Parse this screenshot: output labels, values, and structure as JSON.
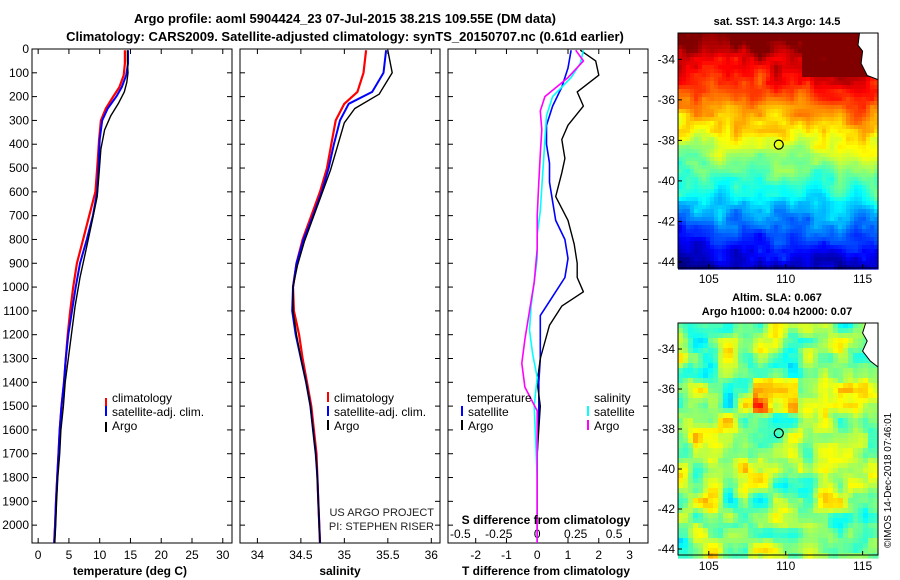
{
  "header": {
    "line1": "Argo profile: aoml 5904424_23 07-Jul-2015 38.21S 109.55E (DM data)",
    "line2": "Climatology: CARS2009. Satellite-adjusted climatology: synTS_20150707.nc (0.61d earlier)"
  },
  "colors": {
    "climatology": "#ff0000",
    "satellite": "#0000ff",
    "argo": "#000000",
    "sat_salinity": "#00ffff",
    "clim_salinity": "#ff00ff"
  },
  "panels": {
    "temperature": {
      "xlabel": "temperature (deg C)",
      "legend": [
        "climatology",
        "satellite-adj. clim.",
        "Argo"
      ]
    },
    "salinity": {
      "xlabel": "salinity",
      "legend": [
        "climatology",
        "satellite-adj. clim.",
        "Argo"
      ],
      "credit1": "US ARGO PROJECT",
      "credit2": "PI: STEPHEN RISER"
    },
    "difference": {
      "xlabel": "T difference from climatology",
      "s_axis_label": "S difference from climatology",
      "legend_temp_head": "temperature",
      "legend_sal_head": "salinity",
      "legend_temp": [
        "satellite",
        "Argo"
      ],
      "legend_sal": [
        "satellite",
        "Argo"
      ]
    }
  },
  "maps": {
    "sst_title": "sat. SST: 14.3 Argo: 14.5",
    "sla_title1": "Altim. SLA: 0.067",
    "sla_title2": "Argo h1000: 0.04 h2000: 0.07",
    "lon_ticks": [
      "105",
      "110",
      "115"
    ],
    "lat_ticks": [
      "-34",
      "-36",
      "-38",
      "-40",
      "-42",
      "-44"
    ],
    "float_position": {
      "lon": 109.55,
      "lat": -38.21
    }
  },
  "stamp": "©IMOS 14-Dec-2018 07:46:01",
  "chart_data": [
    {
      "type": "line",
      "name": "temperature profile",
      "xlabel": "temperature (deg C)",
      "ylabel": "",
      "xlim": [
        -1,
        31.5
      ],
      "ylim": [
        2075,
        0
      ],
      "xticks": [
        0,
        5,
        10,
        15,
        20,
        25,
        30
      ],
      "yticks": [
        0,
        100,
        200,
        300,
        400,
        500,
        600,
        700,
        800,
        900,
        1000,
        1100,
        1200,
        1300,
        1400,
        1500,
        1600,
        1700,
        1800,
        1900,
        2000
      ],
      "series": [
        {
          "name": "climatology",
          "color": "#ff0000",
          "width": 2.2,
          "x": [
            14.1,
            14.1,
            13.9,
            13.2,
            12.2,
            11.0,
            10.2,
            9.9,
            9.6,
            9.3,
            8.3,
            7.3,
            6.3,
            5.7,
            5.2,
            4.8,
            4.5,
            4.2,
            3.8,
            3.5,
            3.3,
            3.1,
            2.9,
            2.75,
            2.6
          ],
          "y": [
            5,
            60,
            110,
            160,
            200,
            250,
            300,
            380,
            500,
            600,
            700,
            800,
            900,
            1000,
            1100,
            1200,
            1300,
            1400,
            1500,
            1600,
            1700,
            1800,
            1900,
            2000,
            2075
          ]
        },
        {
          "name": "satellite-adj. clim.",
          "color": "#0000ff",
          "width": 2.0,
          "x": [
            14.6,
            14.6,
            14.3,
            13.6,
            12.7,
            11.3,
            10.4,
            10.0,
            9.8,
            9.6,
            8.9,
            7.9,
            6.8,
            6.1,
            5.5,
            4.9,
            4.5,
            4.2,
            3.8,
            3.5,
            3.3,
            3.1,
            2.9,
            2.75,
            2.6
          ],
          "y": [
            5,
            60,
            110,
            160,
            200,
            250,
            300,
            380,
            500,
            600,
            700,
            800,
            900,
            1000,
            1100,
            1200,
            1300,
            1400,
            1500,
            1600,
            1700,
            1800,
            1900,
            2000,
            2075
          ]
        },
        {
          "name": "Argo",
          "color": "#000000",
          "width": 1.4,
          "x": [
            14.5,
            14.5,
            14.6,
            14.4,
            14.0,
            13.0,
            11.8,
            10.8,
            10.2,
            9.9,
            9.6,
            8.8,
            7.8,
            6.8,
            6.0,
            5.4,
            4.9,
            4.4,
            4.1,
            3.7,
            3.5,
            3.2,
            3.0,
            2.85,
            2.7
          ],
          "y": [
            5,
            50,
            100,
            140,
            180,
            230,
            280,
            340,
            420,
            520,
            620,
            720,
            840,
            960,
            1080,
            1200,
            1300,
            1400,
            1500,
            1600,
            1700,
            1800,
            1900,
            2000,
            2075
          ]
        }
      ]
    },
    {
      "type": "line",
      "name": "salinity profile",
      "xlabel": "salinity",
      "ylabel": "",
      "xlim": [
        33.8,
        36.1
      ],
      "ylim": [
        2075,
        0
      ],
      "xticks": [
        34,
        34.5,
        35,
        35.5,
        36
      ],
      "xtick_labels": [
        "34",
        "34.5",
        "35",
        "35.5",
        "36"
      ],
      "series": [
        {
          "name": "climatology",
          "color": "#ff0000",
          "width": 2.2,
          "x": [
            35.25,
            35.22,
            35.15,
            35.0,
            34.9,
            34.85,
            34.8,
            34.72,
            34.62,
            34.52,
            34.45,
            34.41,
            34.42,
            34.48,
            34.52,
            34.57,
            34.62,
            34.65,
            34.68,
            34.69,
            34.7,
            34.72
          ],
          "y": [
            5,
            100,
            180,
            230,
            300,
            400,
            500,
            600,
            700,
            800,
            900,
            1000,
            1100,
            1200,
            1300,
            1400,
            1500,
            1600,
            1700,
            1800,
            1900,
            2075
          ]
        },
        {
          "name": "satellite-adj. clim.",
          "color": "#0000ff",
          "width": 2.0,
          "x": [
            35.48,
            35.45,
            35.32,
            35.05,
            34.95,
            34.88,
            34.82,
            34.74,
            34.64,
            34.53,
            34.45,
            34.41,
            34.4,
            34.44,
            34.5,
            34.56,
            34.61,
            34.64,
            34.67,
            34.69,
            34.7,
            34.72
          ],
          "y": [
            5,
            100,
            180,
            230,
            300,
            400,
            500,
            600,
            700,
            800,
            900,
            1000,
            1100,
            1200,
            1300,
            1400,
            1500,
            1600,
            1700,
            1800,
            1900,
            2075
          ]
        },
        {
          "name": "Argo",
          "color": "#000000",
          "width": 1.4,
          "x": [
            35.5,
            35.55,
            35.4,
            35.12,
            35.0,
            34.92,
            34.84,
            34.74,
            34.64,
            34.54,
            34.46,
            34.41,
            34.41,
            34.45,
            34.5,
            34.56,
            34.61,
            34.64,
            34.67,
            34.69,
            34.7,
            34.72
          ],
          "y": [
            5,
            100,
            190,
            250,
            310,
            410,
            510,
            610,
            710,
            810,
            910,
            1000,
            1100,
            1200,
            1300,
            1400,
            1500,
            1600,
            1700,
            1800,
            1900,
            2075
          ]
        }
      ]
    },
    {
      "type": "line",
      "name": "difference from climatology",
      "xlabel": "T difference from climatology",
      "ylabel": "",
      "xlim": [
        -2.9,
        3.6
      ],
      "ylim": [
        2075,
        0
      ],
      "xticks": [
        -2,
        -1,
        0,
        1,
        2,
        3
      ],
      "secondary_axis": {
        "label": "S difference from climatology",
        "ticks": [
          "-0.5",
          "-0.25",
          "0",
          "0.25",
          "0.5"
        ],
        "ticks_value": [
          -0.5,
          -0.25,
          0,
          0.25,
          0.5
        ]
      },
      "series": [
        {
          "name": "temperature satellite",
          "color": "#0000ff",
          "width": 1.6,
          "x": [
            1.1,
            1.0,
            0.8,
            0.5,
            0.3,
            0.3,
            0.4,
            0.4,
            0.5,
            0.6,
            0.9,
            1.0,
            0.9,
            0.5,
            0.1,
            0.1,
            0.1,
            0.05,
            0.05,
            0.0,
            0.0,
            0.0
          ],
          "y": [
            5,
            80,
            160,
            240,
            320,
            400,
            480,
            560,
            640,
            720,
            800,
            880,
            960,
            1040,
            1120,
            1200,
            1300,
            1400,
            1500,
            1700,
            1900,
            2075
          ]
        },
        {
          "name": "temperature Argo",
          "color": "#000000",
          "width": 1.4,
          "x": [
            1.4,
            1.9,
            2.0,
            1.3,
            1.5,
            1.0,
            0.8,
            0.9,
            0.8,
            0.6,
            1.0,
            1.2,
            1.3,
            1.3,
            1.5,
            0.8,
            0.4,
            0.1,
            0.0,
            0.1,
            0.0,
            0.0,
            0.0
          ],
          "y": [
            5,
            50,
            110,
            180,
            240,
            320,
            380,
            460,
            520,
            620,
            720,
            820,
            900,
            960,
            1020,
            1080,
            1160,
            1300,
            1400,
            1500,
            1700,
            1900,
            2075
          ]
        },
        {
          "name": "salinity satellite",
          "color": "#00ffff",
          "width": 1.6,
          "x": [
            0.3,
            0.28,
            0.22,
            0.1,
            0.06,
            0.05,
            0.04,
            0.03,
            0.02,
            0.0,
            0.0,
            -0.02,
            -0.04,
            -0.05,
            -0.03,
            0.0,
            -0.02,
            0.0,
            0.0
          ],
          "y": [
            5,
            60,
            120,
            200,
            280,
            380,
            480,
            580,
            680,
            780,
            880,
            980,
            1080,
            1180,
            1280,
            1380,
            1500,
            1800,
            2075
          ]
        },
        {
          "name": "salinity Argo",
          "color": "#ff00ff",
          "width": 1.6,
          "x": [
            0.25,
            0.3,
            0.2,
            0.05,
            0.02,
            0.03,
            0.02,
            0.01,
            0.0,
            0.0,
            -0.02,
            -0.05,
            -0.08,
            -0.1,
            -0.08,
            0.0,
            0.0,
            0.0
          ],
          "y": [
            5,
            50,
            120,
            200,
            260,
            340,
            440,
            560,
            700,
            840,
            980,
            1100,
            1220,
            1320,
            1420,
            1520,
            1800,
            2075
          ]
        }
      ]
    }
  ]
}
